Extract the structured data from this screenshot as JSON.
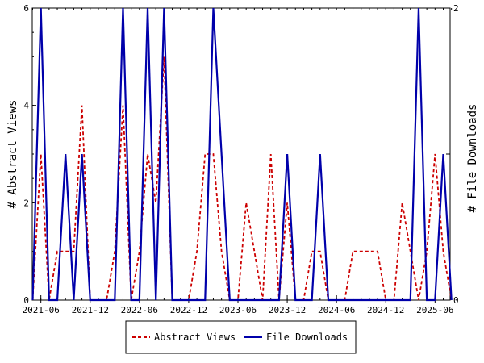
{
  "chart_data": {
    "type": "line",
    "x_start": "2021-06",
    "x": [
      "2021-05",
      "2021-06",
      "2021-07",
      "2021-08",
      "2021-09",
      "2021-10",
      "2021-11",
      "2021-12",
      "2022-01",
      "2022-02",
      "2022-03",
      "2022-04",
      "2022-05",
      "2022-06",
      "2022-07",
      "2022-08",
      "2022-09",
      "2022-10",
      "2022-11",
      "2022-12",
      "2023-01",
      "2023-02",
      "2023-03",
      "2023-04",
      "2023-05",
      "2023-06",
      "2023-07",
      "2023-08",
      "2023-09",
      "2023-10",
      "2023-11",
      "2023-12",
      "2024-01",
      "2024-02",
      "2024-03",
      "2024-04",
      "2024-05",
      "2024-06",
      "2024-07",
      "2024-08",
      "2024-09",
      "2024-10",
      "2024-11",
      "2024-12",
      "2025-01",
      "2025-02",
      "2025-03",
      "2025-04",
      "2025-05",
      "2025-06",
      "2025-07",
      "2025-08"
    ],
    "x_ticks": [
      "2021-06",
      "2021-12",
      "2022-06",
      "2022-12",
      "2023-06",
      "2023-12",
      "2024-06",
      "2024-12",
      "2025-06"
    ],
    "x_tick_indices": [
      1,
      7,
      13,
      19,
      25,
      31,
      37,
      43,
      49
    ],
    "ylabel_left": "# Abstract Views",
    "ylabel_right": "# File Downloads",
    "ylim_left": [
      0,
      6
    ],
    "ylim_right": [
      0,
      2
    ],
    "yticks_left": [
      "0",
      "2",
      "4",
      "6"
    ],
    "yticks_right": [
      "0",
      "1",
      "2"
    ],
    "series": [
      {
        "name": "Abstract Views",
        "axis": "left",
        "color": "#cc0000",
        "style": "dashed",
        "values": [
          0,
          3,
          0,
          1,
          1,
          1,
          4,
          0,
          0,
          0,
          1,
          4,
          0,
          1,
          3,
          2,
          5,
          0,
          0,
          0,
          1,
          3,
          3,
          1,
          0,
          0,
          2,
          1,
          0,
          3,
          0,
          2,
          0,
          0,
          1,
          1,
          0,
          0,
          0,
          1,
          1,
          1,
          1,
          0,
          0,
          2,
          1,
          0,
          1,
          3,
          1,
          0
        ]
      },
      {
        "name": "File Downloads",
        "axis": "right",
        "color": "#0000aa",
        "style": "solid",
        "values": [
          0,
          2,
          0,
          0,
          1,
          0,
          1,
          0,
          0,
          0,
          0,
          2,
          0,
          0,
          2,
          0,
          2,
          0,
          0,
          0,
          0,
          0,
          2,
          1,
          0,
          0,
          0,
          0,
          0,
          0,
          0,
          1,
          0,
          0,
          0,
          1,
          0,
          0,
          0,
          0,
          0,
          0,
          0,
          0,
          0,
          0,
          0,
          2,
          0,
          0,
          1,
          0
        ]
      }
    ],
    "legend": {
      "placement": "bottom-center",
      "entries": [
        "Abstract Views",
        "File Downloads"
      ]
    },
    "grid": false
  }
}
